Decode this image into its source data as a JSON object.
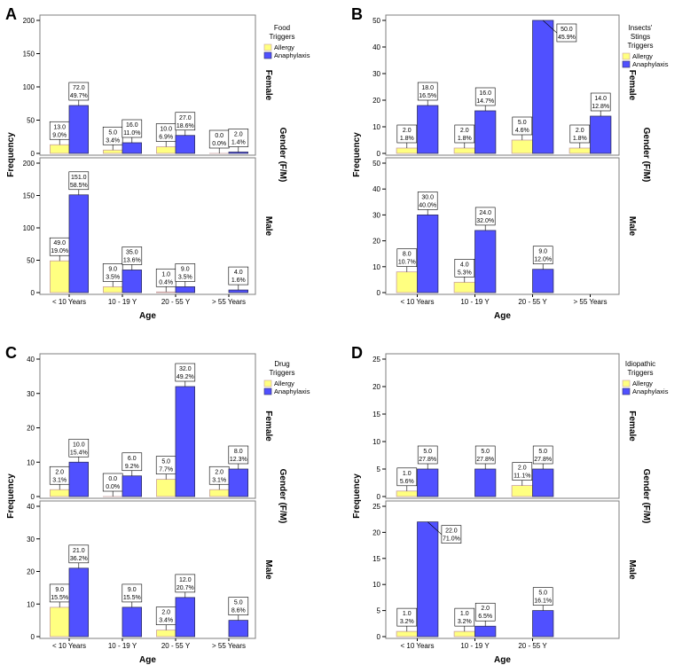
{
  "colors": {
    "allergy": "#ffff80",
    "allergy_stroke": "#c8a0a0",
    "anaphylaxis": "#5050ff",
    "anaphylaxis_stroke": "#303060",
    "frame": "#7f7f7f",
    "label_box": "#ffffff"
  },
  "chart_data": [
    {
      "type": "bar",
      "panel_letter": "A",
      "title_line1": "Food",
      "title_line2": "Triggers",
      "legend": [
        "Allergy",
        "Anaphylaxis"
      ],
      "xlabel": "Age",
      "ylabel": "Frequency",
      "facet_label": "Gender (F/M)",
      "categories": [
        "< 10 Years",
        "10 - 19 Y",
        "20 - 55 Y",
        "> 55 Years"
      ],
      "ylim": [
        0,
        200
      ],
      "yticks": [
        "0",
        "50",
        "100",
        "150",
        "200"
      ],
      "facets": [
        {
          "name": "Female",
          "series": [
            {
              "name": "Allergy",
              "values": [
                13,
                5,
                10,
                0
              ],
              "labels": [
                [
                  "13.0",
                  "9.0%"
                ],
                [
                  "5.0",
                  "3.4%"
                ],
                [
                  "10.0",
                  "6.9%"
                ],
                [
                  "0.0",
                  "0.0%"
                ]
              ]
            },
            {
              "name": "Anaphylaxis",
              "values": [
                72,
                16,
                27,
                2
              ],
              "labels": [
                [
                  "72.0",
                  "49.7%"
                ],
                [
                  "16.0",
                  "11.0%"
                ],
                [
                  "27.0",
                  "18.6%"
                ],
                [
                  "2.0",
                  "1.4%"
                ]
              ]
            }
          ]
        },
        {
          "name": "Male",
          "series": [
            {
              "name": "Allergy",
              "values": [
                49,
                9,
                1,
                null
              ],
              "labels": [
                [
                  "49.0",
                  "19.0%"
                ],
                [
                  "9.0",
                  "3.5%"
                ],
                [
                  "1.0",
                  "0.4%"
                ],
                null
              ]
            },
            {
              "name": "Anaphylaxis",
              "values": [
                151,
                35,
                9,
                4
              ],
              "labels": [
                [
                  "151.0",
                  "58.5%"
                ],
                [
                  "35.0",
                  "13.6%"
                ],
                [
                  "9.0",
                  "3.5%"
                ],
                [
                  "4.0",
                  "1.6%"
                ]
              ]
            }
          ]
        }
      ]
    },
    {
      "type": "bar",
      "panel_letter": "B",
      "title_line1": "Insects'",
      "title_line2": "Stings",
      "title_line3": "Triggers",
      "legend": [
        "Allergy",
        "Anaphylaxis"
      ],
      "xlabel": "Age",
      "ylabel": "Frequency",
      "facet_label": "Gender (F/M)",
      "categories": [
        "< 10 Years",
        "10 - 19 Y",
        "20 - 55 Y",
        "> 55 Years"
      ],
      "ylim": [
        0,
        50
      ],
      "yticks": [
        "0",
        "10",
        "20",
        "30",
        "40",
        "50"
      ],
      "facets": [
        {
          "name": "Female",
          "series": [
            {
              "name": "Allergy",
              "values": [
                2,
                2,
                5,
                2
              ],
              "labels": [
                [
                  "2.0",
                  "1.8%"
                ],
                [
                  "2.0",
                  "1.8%"
                ],
                [
                  "5.0",
                  "4.6%"
                ],
                [
                  "2.0",
                  "1.8%"
                ]
              ]
            },
            {
              "name": "Anaphylaxis",
              "values": [
                18,
                16,
                50,
                14
              ],
              "labels": [
                [
                  "18.0",
                  "16.5%"
                ],
                [
                  "16.0",
                  "14.7%"
                ],
                [
                  "50.0",
                  "45.9%"
                ],
                [
                  "14.0",
                  "12.8%"
                ]
              ]
            }
          ]
        },
        {
          "name": "Male",
          "series": [
            {
              "name": "Allergy",
              "values": [
                8,
                4,
                null,
                null
              ],
              "labels": [
                [
                  "8.0",
                  "10.7%"
                ],
                [
                  "4.0",
                  "5.3%"
                ],
                null,
                null
              ]
            },
            {
              "name": "Anaphylaxis",
              "values": [
                30,
                24,
                9,
                null
              ],
              "labels": [
                [
                  "30.0",
                  "40.0%"
                ],
                [
                  "24.0",
                  "32.0%"
                ],
                [
                  "9.0",
                  "12.0%"
                ],
                null
              ]
            }
          ]
        }
      ]
    },
    {
      "type": "bar",
      "panel_letter": "C",
      "title_line1": "Drug",
      "title_line2": "Triggers",
      "legend": [
        "Allergy",
        "Anaphylaxis"
      ],
      "xlabel": "Age",
      "ylabel": "Frequency",
      "facet_label": "Gender (F/M)",
      "categories": [
        "< 10 Years",
        "10 - 19 Y",
        "20 - 55 Y",
        "> 55 Years"
      ],
      "ylim": [
        0,
        40
      ],
      "yticks": [
        "0",
        "10",
        "20",
        "30",
        "40"
      ],
      "facets": [
        {
          "name": "Female",
          "series": [
            {
              "name": "Allergy",
              "values": [
                2,
                0,
                5,
                2
              ],
              "labels": [
                [
                  "2.0",
                  "3.1%"
                ],
                [
                  "0.0",
                  "0.0%"
                ],
                [
                  "5.0",
                  "7.7%"
                ],
                [
                  "2.0",
                  "3.1%"
                ]
              ]
            },
            {
              "name": "Anaphylaxis",
              "values": [
                10,
                6,
                32,
                8
              ],
              "labels": [
                [
                  "10.0",
                  "15.4%"
                ],
                [
                  "6.0",
                  "9.2%"
                ],
                [
                  "32.0",
                  "49.2%"
                ],
                [
                  "8.0",
                  "12.3%"
                ]
              ]
            }
          ]
        },
        {
          "name": "Male",
          "series": [
            {
              "name": "Allergy",
              "values": [
                9,
                null,
                2,
                null
              ],
              "labels": [
                [
                  "9.0",
                  "15.5%"
                ],
                null,
                [
                  "2.0",
                  "3.4%"
                ],
                null
              ]
            },
            {
              "name": "Anaphylaxis",
              "values": [
                21,
                9,
                12,
                5
              ],
              "labels": [
                [
                  "21.0",
                  "36.2%"
                ],
                [
                  "9.0",
                  "15.5%"
                ],
                [
                  "12.0",
                  "20.7%"
                ],
                [
                  "5.0",
                  "8.6%"
                ]
              ]
            }
          ]
        }
      ]
    },
    {
      "type": "bar",
      "panel_letter": "D",
      "title_line1": "Idiopathic",
      "title_line2": "Triggers",
      "legend": [
        "Allergy",
        "Anaphylaxis"
      ],
      "xlabel": "Age",
      "ylabel": "Frequency",
      "facet_label": "Gender (F/M)",
      "categories": [
        "< 10 Years",
        "10 - 19 Y",
        "20 - 55 Y"
      ],
      "ylim": [
        0,
        25
      ],
      "yticks": [
        "0",
        "5",
        "10",
        "15",
        "20",
        "25"
      ],
      "facets": [
        {
          "name": "Female",
          "series": [
            {
              "name": "Allergy",
              "values": [
                1,
                null,
                2
              ],
              "labels": [
                [
                  "1.0",
                  "5.6%"
                ],
                null,
                [
                  "2.0",
                  "11.1%"
                ]
              ]
            },
            {
              "name": "Anaphylaxis",
              "values": [
                5,
                5,
                5
              ],
              "labels": [
                [
                  "5.0",
                  "27.8%"
                ],
                [
                  "5.0",
                  "27.8%"
                ],
                [
                  "5.0",
                  "27.8%"
                ]
              ]
            }
          ]
        },
        {
          "name": "Male",
          "series": [
            {
              "name": "Allergy",
              "values": [
                1,
                1,
                null
              ],
              "labels": [
                [
                  "1.0",
                  "3.2%"
                ],
                [
                  "1.0",
                  "3.2%"
                ],
                null
              ]
            },
            {
              "name": "Anaphylaxis",
              "values": [
                22,
                2,
                5
              ],
              "labels": [
                [
                  "22.0",
                  "71.0%"
                ],
                [
                  "2.0",
                  "6.5%"
                ],
                [
                  "5.0",
                  "16.1%"
                ]
              ]
            }
          ]
        }
      ]
    }
  ]
}
